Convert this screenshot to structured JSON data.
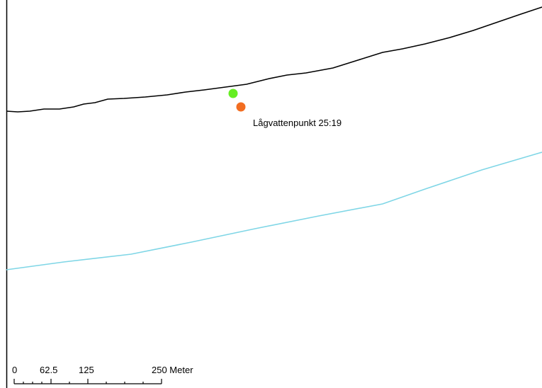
{
  "map": {
    "colors": {
      "background": "#ffffff",
      "frame": "#000000",
      "shoreline": "#000000",
      "depth_line": "#7fd6e6",
      "point_green": "#66ee22",
      "point_orange": "#f26d21"
    },
    "point_label": "Lågvattenpunkt 25:19",
    "scale_bar": {
      "labels": [
        "0",
        "62.5",
        "125",
        "250 Meter"
      ],
      "unit": "Meter"
    }
  }
}
